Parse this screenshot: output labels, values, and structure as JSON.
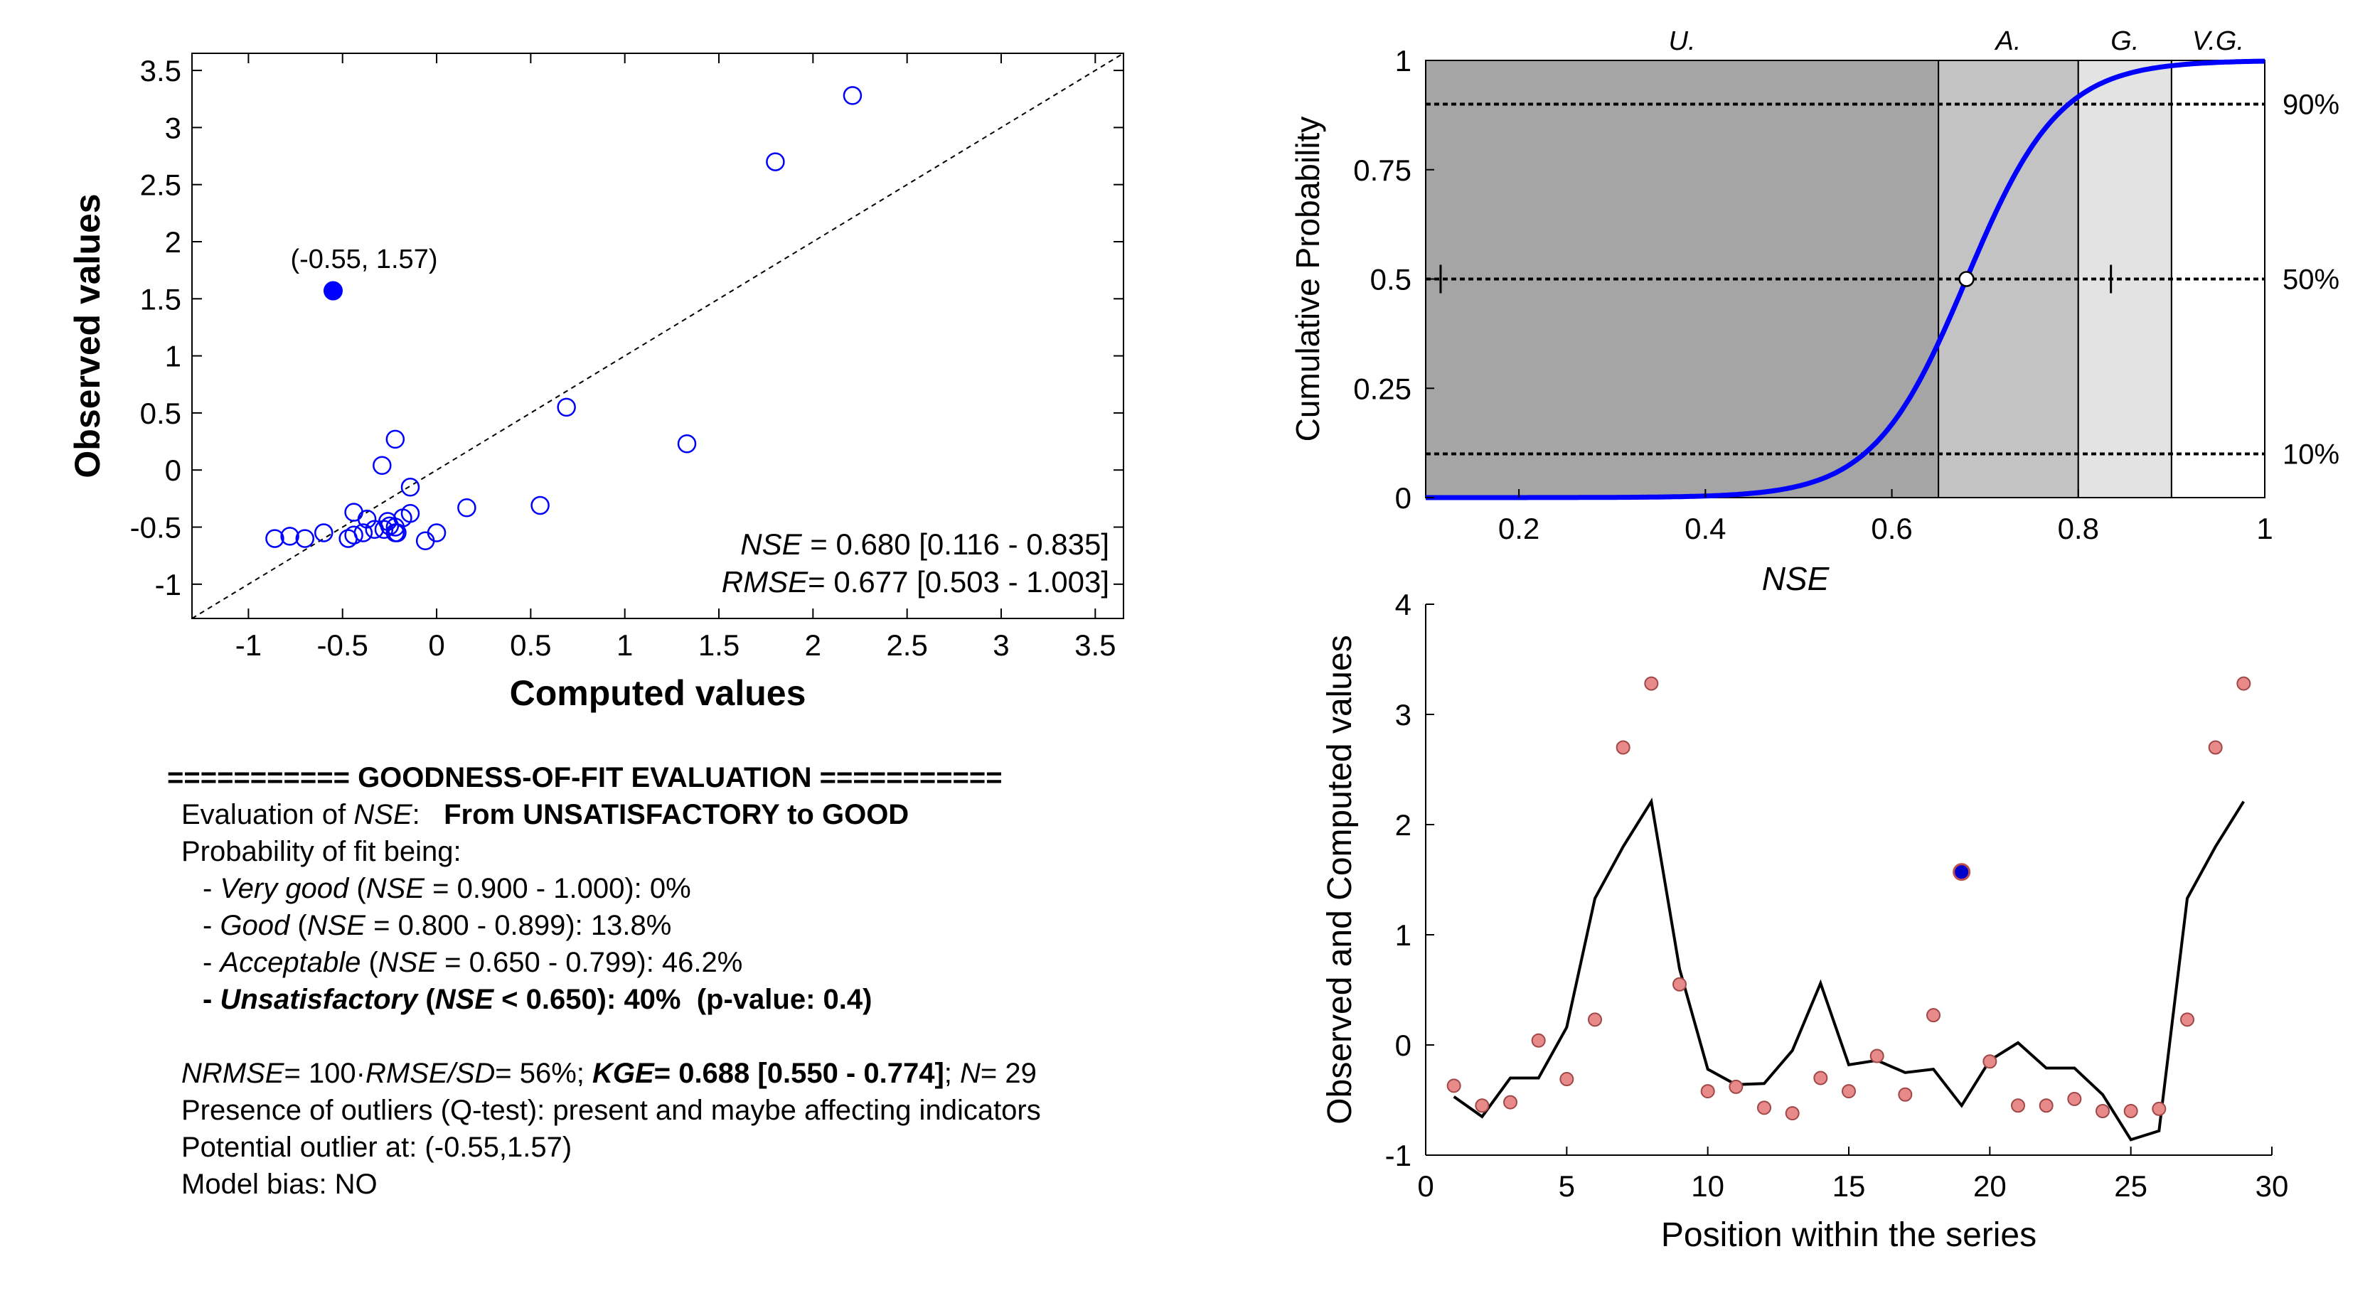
{
  "chart_data": [
    {
      "type": "scatter",
      "xlabel": "Computed values",
      "ylabel": "Observed values",
      "xlim": [
        -1.3,
        3.65
      ],
      "ylim": [
        -1.3,
        3.65
      ],
      "xticks": [
        "-1",
        "-0.5",
        "0",
        "0.5",
        "1",
        "1.5",
        "2",
        "2.5",
        "3",
        "3.5"
      ],
      "yticks": [
        "-1",
        "-0.5",
        "0",
        "0.5",
        "1",
        "1.5",
        "2",
        "2.5",
        "3",
        "3.5"
      ],
      "x": [
        -0.44,
        -0.6,
        -0.28,
        -0.39,
        -0.29,
        0.55,
        1.33,
        1.8,
        2.21,
        0.69,
        -0.18,
        -0.14,
        -0.26,
        -0.21,
        -0.47,
        -0.25,
        -0.22,
        -0.06,
        0.0,
        -0.22,
        0.16,
        -0.14,
        -0.44,
        -0.33,
        -0.7,
        -0.78,
        -0.86,
        -0.37,
        -0.22
      ],
      "y": [
        -0.37,
        -0.55,
        -0.52,
        -0.55,
        0.04,
        -0.31,
        0.23,
        2.7,
        3.28,
        0.55,
        -0.42,
        -0.38,
        -0.45,
        -0.55,
        -0.6,
        -0.49,
        -0.5,
        -0.62,
        -0.55,
        0.27,
        -0.33,
        -0.15,
        -0.57,
        -0.52,
        -0.6,
        -0.58,
        -0.6,
        -0.43,
        -0.55
      ],
      "highlight": {
        "x": -0.55,
        "y": 1.57,
        "label": "(-0.55, 1.57)"
      },
      "reference_line": "1:1",
      "annotations": {
        "nse_name": "NSE",
        "nse_value": " = 0.680 [0.116 - 0.835]",
        "rmse_name": "RMSE",
        "rmse_value": "= 0.677 [0.503 - 1.003]"
      },
      "marker_color": "#0000ff"
    },
    {
      "type": "line",
      "title": "",
      "xlabel": "NSE",
      "ylabel": "Cumulative Probability",
      "xlim": [
        0.1,
        1.0
      ],
      "ylim": [
        0,
        1
      ],
      "xticks": [
        "0.2",
        "0.4",
        "0.6",
        "0.8",
        "1"
      ],
      "yticks": [
        "0",
        "0.25",
        "0.5",
        "0.75",
        "1"
      ],
      "regions": [
        {
          "name": "U.",
          "from": 0.1,
          "to": 0.65,
          "color": "#a5a5a5"
        },
        {
          "name": "A.",
          "from": 0.65,
          "to": 0.8,
          "color": "#c3c3c3"
        },
        {
          "name": "G.",
          "from": 0.8,
          "to": 0.9,
          "color": "#e3e3e3"
        },
        {
          "name": "V.G.",
          "from": 0.9,
          "to": 1.0,
          "color": "#ffffff"
        }
      ],
      "percentile_lines": [
        {
          "p": 0.9,
          "label": "90%"
        },
        {
          "p": 0.5,
          "label": "50%"
        },
        {
          "p": 0.1,
          "label": "10%"
        }
      ],
      "median_point": {
        "x": 0.68,
        "y": 0.5
      },
      "interval": [
        0.116,
        0.835
      ],
      "cdf": {
        "mu": 0.68,
        "sigma": 0.085,
        "tail_start": 0.0,
        "tail_weight": 0.0
      },
      "curve_color": "#0000ff"
    },
    {
      "type": "line",
      "xlabel": "Position within the series",
      "ylabel": "Observed and Computed values",
      "xlim": [
        0,
        30
      ],
      "ylim": [
        -1,
        4
      ],
      "xticks": [
        "0",
        "5",
        "10",
        "15",
        "20",
        "25",
        "30"
      ],
      "yticks": [
        "-1",
        "0",
        "1",
        "2",
        "3",
        "4"
      ],
      "series": [
        {
          "name": "Computed",
          "x": [
            1,
            2,
            3,
            4,
            5,
            6,
            7,
            8,
            9,
            10,
            11,
            12,
            13,
            14,
            15,
            16,
            17,
            18,
            19,
            20,
            21,
            22,
            23,
            24,
            25,
            26,
            27,
            28,
            29
          ],
          "values": [
            -0.47,
            -0.65,
            -0.3,
            -0.3,
            0.16,
            1.33,
            1.8,
            2.21,
            0.69,
            -0.22,
            -0.36,
            -0.35,
            -0.05,
            0.56,
            -0.18,
            -0.14,
            -0.25,
            -0.22,
            -0.55,
            -0.14,
            0.02,
            -0.21,
            -0.21,
            -0.45,
            -0.86,
            -0.78,
            1.33,
            1.8,
            2.21
          ]
        },
        {
          "name": "Observed",
          "x": [
            1,
            2,
            3,
            4,
            5,
            6,
            7,
            8,
            9,
            10,
            11,
            12,
            13,
            14,
            15,
            16,
            17,
            18,
            19,
            20,
            21,
            22,
            23,
            24,
            25,
            26,
            27,
            28,
            29
          ],
          "values": [
            -0.37,
            -0.55,
            -0.52,
            0.04,
            -0.31,
            0.23,
            2.7,
            3.28,
            0.55,
            -0.42,
            -0.38,
            -0.57,
            -0.62,
            -0.3,
            -0.42,
            -0.1,
            -0.45,
            0.27,
            1.57,
            -0.15,
            -0.55,
            -0.55,
            -0.49,
            -0.6,
            -0.6,
            -0.58,
            0.23,
            2.7,
            3.28
          ]
        }
      ],
      "outlier_index": 19,
      "line_color": "#000000",
      "marker_color": "#e88a8a"
    }
  ],
  "report": {
    "header": "=========== GOODNESS-OF-FIT EVALUATION ===========",
    "eval_prefix": "Evaluation of ",
    "eval_nse": "NSE",
    "eval_colon": ":   ",
    "eval_result": "From UNSATISFACTORY to GOOD",
    "prob_title": "Probability of fit being:",
    "vg_dash": "- ",
    "vg_name": "Very good",
    "vg_paren": " (",
    "vg_nse": "NSE",
    "vg_rest": " = 0.900 - 1.000): 0%",
    "g_dash": "- ",
    "g_name": "Good",
    "g_paren": " (",
    "g_nse": "NSE",
    "g_rest": " = 0.800 - 0.899): 13.8%",
    "a_dash": "- ",
    "a_name": "Acceptable",
    "a_paren": " (",
    "a_nse": "NSE",
    "a_rest": " = 0.650 - 0.799): 46.2%",
    "u_dash": "- ",
    "u_name": "Unsatisfactory",
    "u_paren": " (",
    "u_nse": "NSE",
    "u_rest": " < 0.650): 40%  (p-value: 0.4)",
    "nrmse_name": "NRMSE",
    "nrmse_mid": "= 100·",
    "nrmse_rmse": "RMSE",
    "nrmse_slash": "/",
    "nrmse_sd": "SD",
    "nrmse_val": "= 56%; ",
    "kge_name": "KGE",
    "kge_val": "= 0.688 [0.550 - 0.774]",
    "sep": "; ",
    "n_name": "N",
    "n_val": "= 29",
    "outliers": "Presence of outliers (Q-test): present and maybe affecting indicators",
    "outlier_at": "Potential outlier at: (-0.55,1.57)",
    "bias": "Model bias: NO"
  }
}
